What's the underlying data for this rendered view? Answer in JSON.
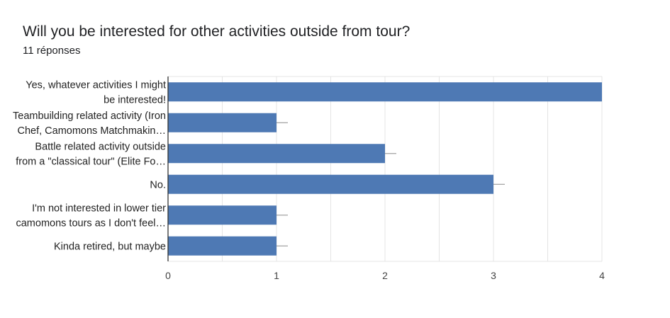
{
  "header": {
    "title": "Will you be interested for other activities outside from tour?",
    "responses": "11 réponses"
  },
  "chart_data": {
    "type": "bar",
    "orientation": "horizontal",
    "title": "Will you be interested for other activities outside from tour?",
    "categories": [
      [
        "Yes, whatever activities I might",
        "be interested!"
      ],
      [
        "Teambuilding related activity (Iron",
        "Chef, Camomons Matchmakin…"
      ],
      [
        "Battle related activity outside",
        "from a \"classical tour\" (Elite Fo…"
      ],
      [
        "No."
      ],
      [
        "I'm not interested in lower tier",
        "camomons tours as I don't feel…"
      ],
      [
        "Kinda retired, but maybe"
      ]
    ],
    "values": [
      4,
      1,
      2,
      3,
      1,
      1
    ],
    "xlim": [
      0,
      4
    ],
    "xticks": [
      "0",
      "1",
      "2",
      "3",
      "4"
    ],
    "grid": true,
    "bar_color": "#4e79b4",
    "error_bar_color": "#9e9e9e",
    "grid_color": "#e4e4e4",
    "axis_color": "#333333"
  }
}
